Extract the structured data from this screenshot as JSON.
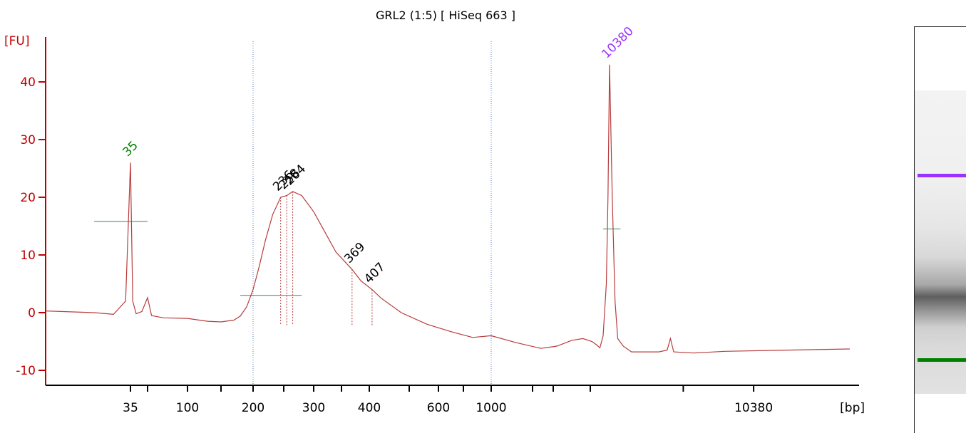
{
  "colors": {
    "trace": "#b83c3c",
    "axis": "#c00000",
    "marker_lower": "#008000",
    "marker_upper": "#9933ff",
    "peak_label": "#000000",
    "baseline": "#2e8b57",
    "divider": "#5577cc"
  },
  "chart_data": {
    "type": "line",
    "title": "GRL2 (1:5)  [ HiSeq 663 ]",
    "ylabel": "[FU]",
    "xlabel": "[bp]",
    "ylim": [
      -12,
      47
    ],
    "yticks": [
      -10,
      0,
      10,
      20,
      30,
      40
    ],
    "x_ticks": [
      {
        "label": "35",
        "pos": 35
      },
      {
        "label": "",
        "pos": 50
      },
      {
        "label": "100",
        "pos": 100
      },
      {
        "label": "",
        "pos": 150
      },
      {
        "label": "200",
        "pos": 200
      },
      {
        "label": "",
        "pos": 250
      },
      {
        "label": "300",
        "pos": 300
      },
      {
        "label": "",
        "pos": 350
      },
      {
        "label": "400",
        "pos": 400
      },
      {
        "label": "",
        "pos": 500
      },
      {
        "label": "600",
        "pos": 600
      },
      {
        "label": "",
        "pos": 700
      },
      {
        "label": "1000",
        "pos": 1000
      },
      {
        "label": "",
        "pos": 1500
      },
      {
        "label": "",
        "pos": 2000
      },
      {
        "label": "",
        "pos": 3000
      },
      {
        "label": "",
        "pos": 7000
      },
      {
        "label": "10380",
        "pos": 10380
      }
    ],
    "series": [
      {
        "points": [
          [
            0,
            0.3
          ],
          [
            20,
            0.0
          ],
          [
            28,
            -0.3
          ],
          [
            33,
            2.0
          ],
          [
            35,
            26.0
          ],
          [
            37,
            2.0
          ],
          [
            40,
            -0.2
          ],
          [
            45,
            0.2
          ],
          [
            50,
            2.6
          ],
          [
            55,
            -0.5
          ],
          [
            70,
            -0.9
          ],
          [
            100,
            -1.0
          ],
          [
            130,
            -1.5
          ],
          [
            150,
            -1.6
          ],
          [
            170,
            -1.3
          ],
          [
            180,
            -0.6
          ],
          [
            190,
            1.0
          ],
          [
            200,
            4.0
          ],
          [
            210,
            8.0
          ],
          [
            220,
            12.5
          ],
          [
            232,
            17.0
          ],
          [
            245,
            20.0
          ],
          [
            255,
            20.3
          ],
          [
            265,
            21.0
          ],
          [
            280,
            20.3
          ],
          [
            300,
            17.5
          ],
          [
            320,
            14.0
          ],
          [
            340,
            10.5
          ],
          [
            369,
            7.5
          ],
          [
            385,
            5.5
          ],
          [
            407,
            4.0
          ],
          [
            430,
            2.5
          ],
          [
            480,
            0.0
          ],
          [
            560,
            -2.0
          ],
          [
            650,
            -3.3
          ],
          [
            800,
            -4.3
          ],
          [
            1000,
            -4.0
          ],
          [
            1300,
            -5.2
          ],
          [
            1700,
            -6.2
          ],
          [
            2100,
            -5.8
          ],
          [
            2500,
            -4.8
          ],
          [
            2800,
            -4.5
          ],
          [
            3100,
            -5.0
          ],
          [
            3400,
            -5.6
          ],
          [
            3600,
            -6.1
          ],
          [
            3800,
            -4.0
          ],
          [
            4000,
            5.0
          ],
          [
            4100,
            20.0
          ],
          [
            4200,
            43.0
          ],
          [
            4300,
            20.0
          ],
          [
            4400,
            2.0
          ],
          [
            4500,
            -4.5
          ],
          [
            4700,
            -5.8
          ],
          [
            5000,
            -6.8
          ],
          [
            6000,
            -6.8
          ],
          [
            6300,
            -6.5
          ],
          [
            6420,
            -4.5
          ],
          [
            6540,
            -6.8
          ],
          [
            7500,
            -7.0
          ],
          [
            9000,
            -6.7
          ],
          [
            12000,
            -6.5
          ],
          [
            15000,
            -6.3
          ]
        ]
      }
    ],
    "peaks": [
      {
        "label": "35",
        "x": 35,
        "y": 26.0,
        "role": "lower marker"
      },
      {
        "label": "236",
        "x": 245,
        "y": 20.0,
        "role": "sample"
      },
      {
        "label": "258",
        "x": 255,
        "y": 20.3,
        "role": "sample"
      },
      {
        "label": "264",
        "x": 265,
        "y": 21.0,
        "role": "sample"
      },
      {
        "label": "369",
        "x": 369,
        "y": 7.5,
        "role": "sample"
      },
      {
        "label": "407",
        "x": 407,
        "y": 4.0,
        "role": "sample"
      },
      {
        "label": "10380",
        "x": 4200,
        "y": 43.0,
        "role": "upper marker"
      }
    ],
    "dividers": [
      200,
      1000
    ],
    "grid": false,
    "legend": "none"
  }
}
